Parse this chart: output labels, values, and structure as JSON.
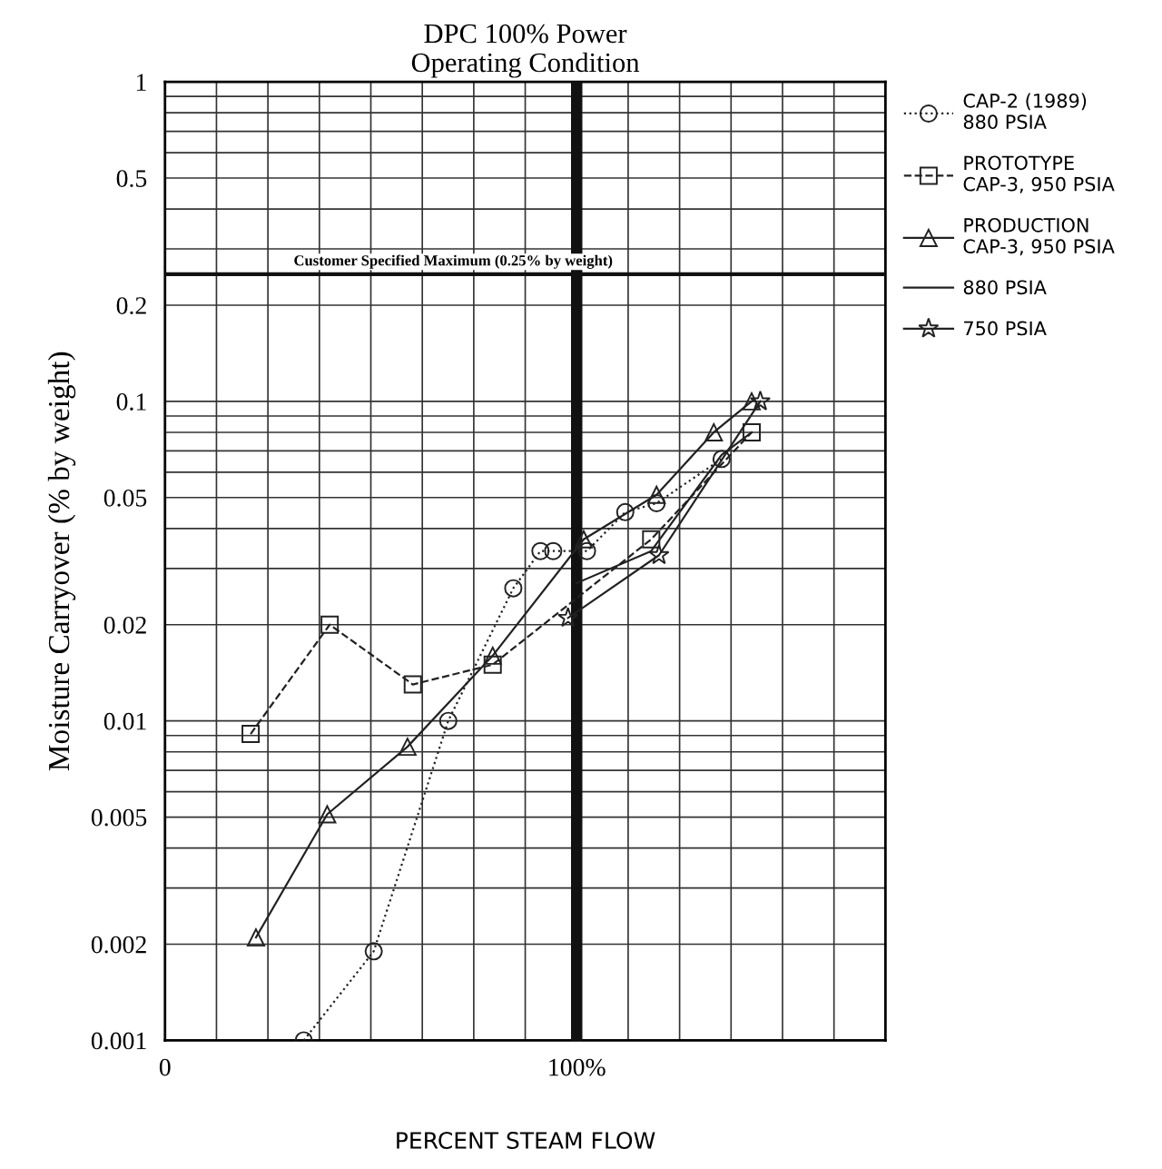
{
  "chart_data": {
    "type": "line",
    "title": "DPC 100% Power\nOperating Condition",
    "xlabel": "PERCENT STEAM FLOW",
    "ylabel": "Moisture Carryover (% by weight)",
    "log": "y",
    "grid": true,
    "legend": "right",
    "xlim": [
      0,
      175
    ],
    "xticks": [
      0,
      {
        "value": 12.5,
        "label": null
      },
      {
        "value": 25,
        "label": null
      },
      {
        "value": 37.5,
        "label": null
      },
      {
        "value": 50,
        "label": null
      },
      {
        "value": 62.5,
        "label": null
      },
      {
        "value": 75,
        "label": null
      },
      {
        "value": 87.5,
        "label": null
      },
      {
        "value": 100,
        "label": "100%"
      },
      {
        "value": 112.5,
        "label": null
      },
      {
        "value": 125,
        "label": null
      },
      {
        "value": 137.5,
        "label": null
      },
      {
        "value": 150,
        "label": null
      },
      {
        "value": 162.5,
        "label": null
      },
      {
        "value": 175,
        "label": null
      }
    ],
    "ylim": [
      0.001,
      1
    ],
    "yticks": [
      0.001,
      0.002,
      {
        "value": 0.003,
        "label": null
      },
      {
        "value": 0.004,
        "label": null
      },
      0.005,
      {
        "value": 0.006,
        "label": null
      },
      {
        "value": 0.007,
        "label": null
      },
      {
        "value": 0.008,
        "label": null
      },
      {
        "value": 0.009,
        "label": null
      },
      0.01,
      0.02,
      {
        "value": 0.03,
        "label": null
      },
      {
        "value": 0.04,
        "label": null
      },
      0.05,
      {
        "value": 0.06,
        "label": null
      },
      {
        "value": 0.07,
        "label": null
      },
      {
        "value": 0.08,
        "label": null
      },
      {
        "value": 0.09,
        "label": null
      },
      0.1,
      0.2,
      {
        "value": 0.3,
        "label": null
      },
      {
        "value": 0.4,
        "label": null
      },
      0.5,
      {
        "value": 0.6,
        "label": null
      },
      {
        "value": 0.7,
        "label": null
      },
      {
        "value": 0.8,
        "label": null
      },
      {
        "value": 0.9,
        "label": null
      },
      1
    ],
    "ref_lines": [
      {
        "axis": "y",
        "value": 0.25,
        "label": "Customer Specified Maximum (0.25% by weight)",
        "color": "#111111",
        "line_style": "solid"
      },
      {
        "axis": "x",
        "value": 100,
        "label": null,
        "color": "#111111",
        "line_style": "solid"
      }
    ],
    "series": [
      {
        "name": "CAP-2 (1989)\n880 PSIA",
        "color": "#222222",
        "marker": "circle",
        "line_style": "dotted",
        "x": [
          33.7,
          50.7,
          68.8,
          84.6,
          91.2,
          94.3,
          102.5,
          111.8,
          119.4,
          135.2
        ],
        "values": [
          0.001,
          0.0019,
          0.01,
          0.026,
          0.034,
          0.034,
          0.034,
          0.045,
          0.048,
          0.066
        ]
      },
      {
        "name": "PROTOTYPE\nCAP-3, 950 PSIA",
        "color": "#222222",
        "marker": "square",
        "line_style": "dashed",
        "x": [
          20.8,
          40,
          60.2,
          79.6,
          118.1,
          142.5
        ],
        "values": [
          0.0091,
          0.02,
          0.013,
          0.015,
          0.037,
          0.08
        ]
      },
      {
        "name": "PRODUCTION\nCAP-3, 950 PSIA",
        "color": "#222222",
        "marker": "triangle",
        "line_style": "solid",
        "x": [
          22.1,
          39.4,
          58.9,
          79.6,
          101.7,
          119.4,
          133.3,
          142.5
        ],
        "values": [
          0.0021,
          0.0051,
          0.0083,
          0.016,
          0.037,
          0.051,
          0.08,
          0.1
        ]
      },
      {
        "name": "880 PSIA",
        "color": "#222222",
        "marker": "none",
        "line_style": "solid",
        "x": [
          100,
          118.1,
          135.2,
          142.5
        ],
        "values": [
          0.027,
          0.034,
          0.068,
          0.08
        ]
      },
      {
        "name": "750 PSIA",
        "color": "#222222",
        "marker": "star",
        "line_style": "solid",
        "x": [
          97.9,
          120,
          144.6
        ],
        "values": [
          0.021,
          0.033,
          0.1
        ]
      }
    ]
  }
}
